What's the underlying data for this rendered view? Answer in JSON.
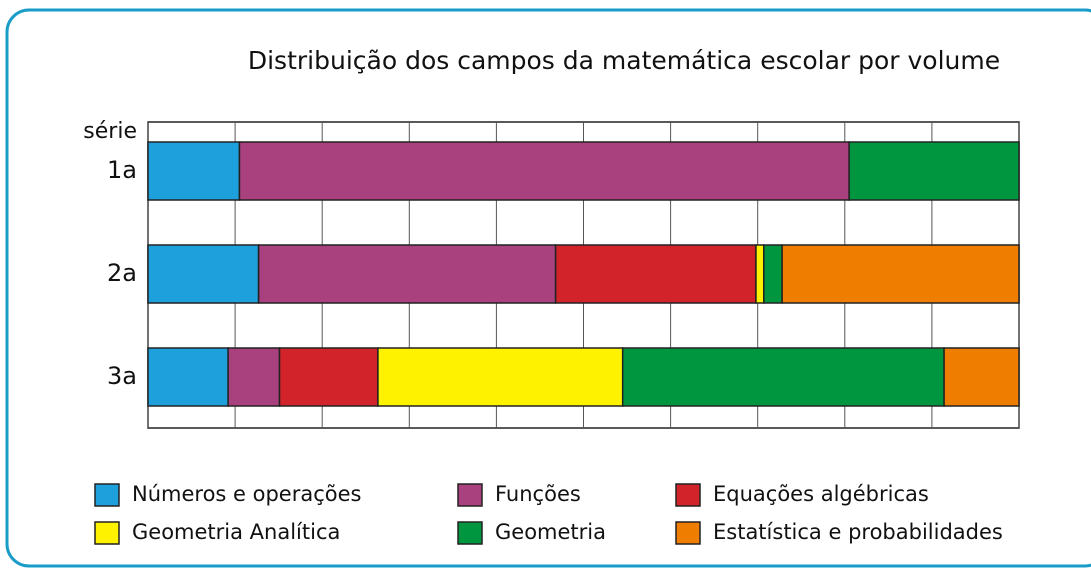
{
  "chart_data": {
    "type": "stacked-barh",
    "title": "Distribuição dos campos da matemática escolar por volume",
    "y_label": "série",
    "categories": [
      "1a",
      "2a",
      "3a"
    ],
    "series": [
      {
        "name": "Números e operações",
        "color": "#1ea0dc",
        "values": [
          10.5,
          12.7,
          9.2
        ]
      },
      {
        "name": "Funções",
        "color": "#a8417e",
        "values": [
          70,
          34.1,
          5.9
        ]
      },
      {
        "name": "Equações algébricas",
        "color": "#d2232a",
        "values": [
          0,
          23,
          11.3
        ]
      },
      {
        "name": "Geometria Analítica",
        "color": "#fff200",
        "values": [
          0,
          0.9,
          28.1
        ]
      },
      {
        "name": "Geometria",
        "color": "#009640",
        "values": [
          19.5,
          2.1,
          36.9
        ]
      },
      {
        "name": "Estatística e probabilidades",
        "color": "#ef7d00",
        "values": [
          0,
          27.2,
          8.6
        ]
      }
    ],
    "xlim": [
      0,
      100
    ],
    "xticks": [
      0,
      10,
      20,
      30,
      40,
      50,
      60,
      70,
      80,
      90,
      100
    ],
    "grid": true
  }
}
